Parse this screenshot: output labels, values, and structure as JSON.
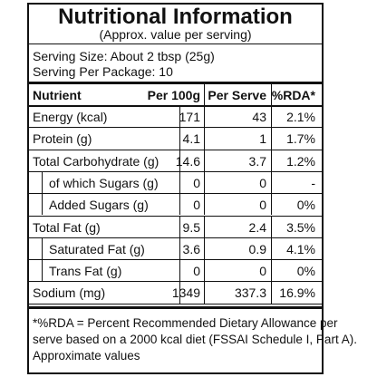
{
  "title": "Nutritional Information",
  "subtitle": "(Approx. value per serving)",
  "serving": [
    "Serving Size: About 2 tbsp (25g)",
    "Serving Per Package: 10"
  ],
  "table": {
    "header": [
      "Nutrient",
      "Per 100g",
      "Per Serve",
      "%RDA*"
    ],
    "rows": [
      [
        "Energy (kcal)",
        "171",
        "43",
        "2.1%"
      ],
      [
        "Protein (g)",
        "4.1",
        "1",
        "1.7%"
      ],
      [
        "Total Carbohydrate (g)",
        "14.6",
        "3.7",
        "1.2%"
      ],
      [
        "of which Sugars (g)",
        "0",
        "0",
        "-"
      ],
      [
        "Added Sugars (g)",
        "0",
        "0",
        "0%"
      ],
      [
        "Total Fat (g)",
        "9.5",
        "2.4",
        "3.5%"
      ],
      [
        "Saturated Fat (g)",
        "3.6",
        "0.9",
        "4.1%"
      ],
      [
        "Trans Fat (g)",
        "0",
        "0",
        "0%"
      ],
      [
        "Sodium (mg)",
        "1349",
        "337.3",
        "16.9%"
      ]
    ]
  },
  "footnote": [
    "*%RDA = Percent Recommended Dietary Allowance per",
    "serve based on a 2000 kcal diet (FSSAI Schedule I, Part A).",
    "Approximate values"
  ]
}
